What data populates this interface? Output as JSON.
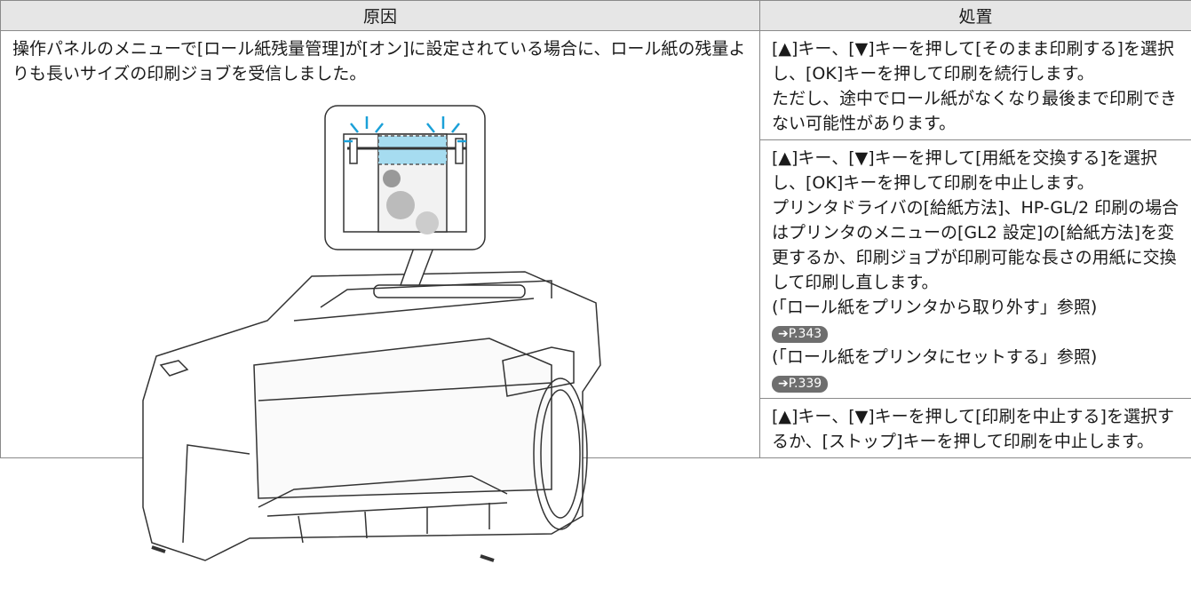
{
  "table": {
    "headers": [
      "原因",
      "処置"
    ],
    "cause": "操作パネルのメニューで[ロール紙残量管理]が[オン]に設定されている場合に、ロール紙の残量よりも長いサイズの印刷ジョブを受信しました。",
    "actions": [
      {
        "items": [
          {
            "text": "[▲]キー、[▼]キーを押して[そのまま印刷する]を選択し、[OK]キーを押して印刷を続行します。"
          },
          {
            "text": "ただし、途中でロール紙がなくなり最後まで印刷できない可能性があります。"
          }
        ]
      },
      {
        "items": [
          {
            "text": "[▲]キー、[▼]キーを押して[用紙を交換する]を選択し、[OK]キーを押して印刷を中止します。"
          },
          {
            "text": "プリンタドライバの[給紙方法]、HP-GL/2 印刷の場合はプリンタのメニューの[GL2 設定]の[給紙方法]を変更するか、印刷ジョブが印刷可能な長さの用紙に交換して印刷し直します。"
          },
          {
            "text": "(「ロール紙をプリンタから取り外す」参照)"
          },
          {
            "link": "➔P.343"
          },
          {
            "text": "(「ロール紙をプリンタにセットする」参照)"
          },
          {
            "link": "➔P.339"
          }
        ]
      },
      {
        "items": [
          {
            "text": "[▲]キー、[▼]キーを押して[印刷を中止する]を選択するか、[ストップ]キーを押して印刷を中止します。"
          }
        ]
      }
    ]
  }
}
